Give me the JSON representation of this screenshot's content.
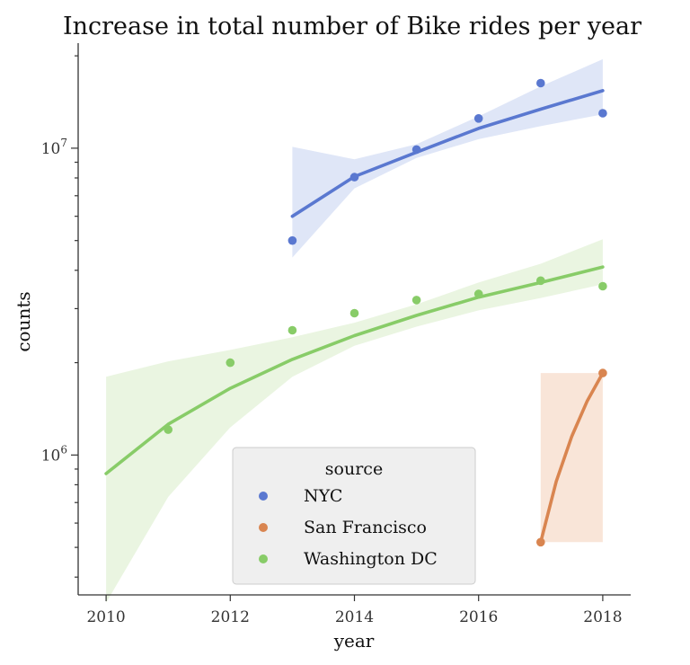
{
  "chart_data": {
    "type": "scatter",
    "title": "Increase in total number of Bike rides per year",
    "xlabel": "year",
    "ylabel": "counts",
    "y_scale": "log",
    "xlim": [
      2009.55,
      2018.45
    ],
    "ylim": [
      350000,
      22000000
    ],
    "x_ticks": [
      2010,
      2012,
      2014,
      2016,
      2018
    ],
    "x_tick_labels": [
      "2010",
      "2012",
      "2014",
      "2016",
      "2018"
    ],
    "y_major_ticks": [
      1000000,
      10000000
    ],
    "y_tick_labels": [
      {
        "base": "10",
        "exp": "6"
      },
      {
        "base": "10",
        "exp": "7"
      }
    ],
    "y_minor_ticks": [
      400000,
      500000,
      600000,
      700000,
      800000,
      900000,
      2000000,
      3000000,
      4000000,
      5000000,
      6000000,
      7000000,
      8000000,
      9000000,
      20000000
    ],
    "grid": false,
    "legend": {
      "title": "source",
      "placement": "bottom-center"
    },
    "series": [
      {
        "name": "NYC",
        "color": "#5a78d0",
        "band_color": "#dfe6f7",
        "x": [
          2013,
          2014,
          2015,
          2016,
          2017,
          2018
        ],
        "y": [
          5000000,
          8050000,
          9900000,
          12500000,
          16300000,
          13000000
        ],
        "fit_x": [
          2013,
          2014,
          2015,
          2016,
          2017,
          2018
        ],
        "fit_y": [
          6000000,
          8080000,
          9700000,
          11600000,
          13400000,
          15400000
        ],
        "band_lower": [
          4400000,
          7400000,
          9300000,
          10700000,
          11800000,
          12900000
        ],
        "band_upper": [
          10100000,
          9200000,
          10300000,
          12700000,
          15900000,
          19500000
        ]
      },
      {
        "name": "San Francisco",
        "color": "#d98550",
        "band_color": "#f9e5d8",
        "x": [
          2017,
          2018
        ],
        "y": [
          520000,
          1850000
        ],
        "fit_x": [
          2017,
          2017.25,
          2017.5,
          2017.75,
          2018
        ],
        "fit_y": [
          520000,
          820000,
          1150000,
          1500000,
          1850000
        ],
        "band_lower": [
          520000,
          520000,
          520000,
          520000,
          520000
        ],
        "band_upper": [
          1850000,
          1850000,
          1850000,
          1850000,
          1850000
        ]
      },
      {
        "name": "Washington DC",
        "color": "#88cc68",
        "band_color": "#eaf5e1",
        "x": [
          2011,
          2012,
          2013,
          2014,
          2015,
          2016,
          2017,
          2018
        ],
        "y": [
          1210000,
          2000000,
          2550000,
          2900000,
          3200000,
          3350000,
          3700000,
          3550000
        ],
        "fit_x": [
          2010,
          2011,
          2012,
          2013,
          2014,
          2015,
          2016,
          2017,
          2018
        ],
        "fit_y": [
          870000,
          1260000,
          1650000,
          2050000,
          2450000,
          2850000,
          3270000,
          3650000,
          4100000
        ],
        "band_lower": [
          330000,
          730000,
          1230000,
          1800000,
          2270000,
          2620000,
          2960000,
          3250000,
          3600000
        ],
        "band_upper": [
          1800000,
          2020000,
          2200000,
          2420000,
          2700000,
          3100000,
          3650000,
          4200000,
          5050000
        ]
      }
    ]
  }
}
